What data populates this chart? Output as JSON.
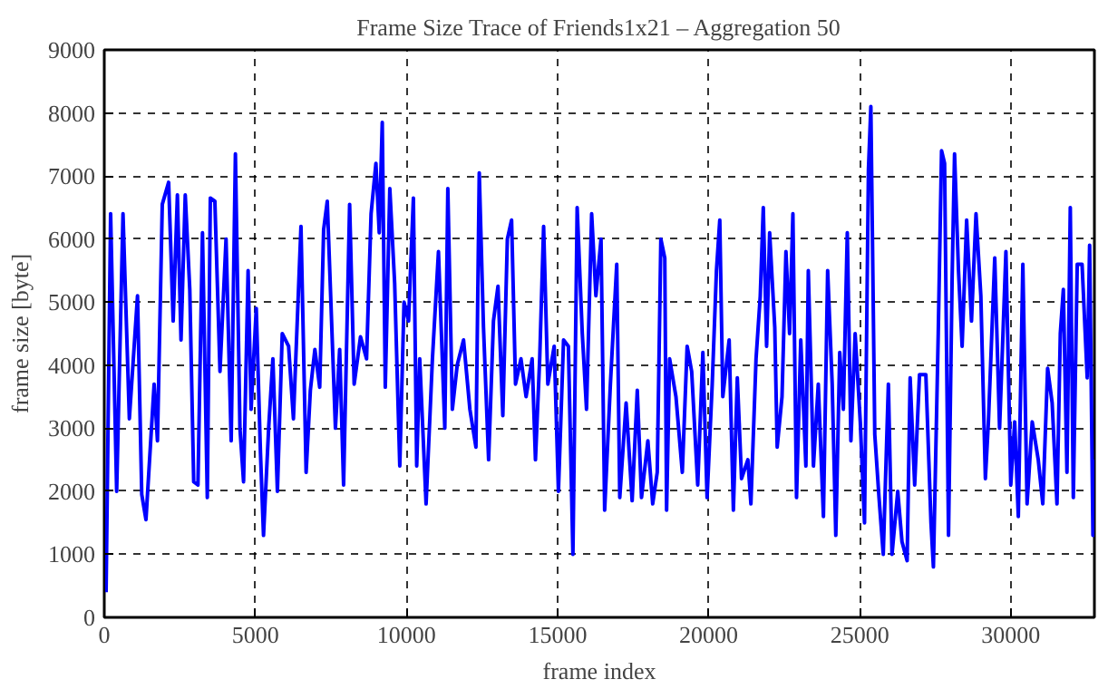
{
  "chart_data": {
    "type": "line",
    "title": "Frame Size Trace of Friends1x21 – Aggregation 50",
    "xlabel": "frame index",
    "ylabel": "frame size [byte]",
    "xlim": [
      0,
      32768
    ],
    "ylim": [
      0,
      9000
    ],
    "xticks": [
      0,
      5000,
      10000,
      15000,
      20000,
      25000,
      30000
    ],
    "yticks": [
      0,
      1000,
      2000,
      3000,
      4000,
      5000,
      6000,
      7000,
      8000,
      9000
    ],
    "grid": true,
    "series": [
      {
        "color": "#0000ff",
        "x": [
          60,
          210,
          410,
          620,
          830,
          1100,
          1240,
          1380,
          1650,
          1760,
          1920,
          2130,
          2280,
          2420,
          2540,
          2680,
          2830,
          2960,
          3100,
          3250,
          3410,
          3510,
          3660,
          3830,
          4030,
          4200,
          4340,
          4490,
          4610,
          4760,
          4860,
          5030,
          5170,
          5270,
          5440,
          5580,
          5730,
          5890,
          6100,
          6260,
          6510,
          6680,
          6820,
          6970,
          7130,
          7260,
          7380,
          7650,
          7790,
          7920,
          8120,
          8270,
          8480,
          8680,
          8830,
          8990,
          9100,
          9200,
          9300,
          9450,
          9610,
          9780,
          9920,
          10070,
          10230,
          10340,
          10440,
          10650,
          10860,
          11060,
          11270,
          11370,
          11520,
          11680,
          11890,
          12100,
          12300,
          12410,
          12550,
          12720,
          12880,
          13030,
          13190,
          13340,
          13480,
          13610,
          13790,
          13960,
          14160,
          14270,
          14410,
          14540,
          14680,
          14890,
          15030,
          15200,
          15360,
          15510,
          15650,
          15820,
          15960,
          16130,
          16270,
          16440,
          16560,
          16750,
          16960,
          17060,
          17270,
          17470,
          17640,
          17780,
          17990,
          18150,
          18300,
          18420,
          18550,
          18610,
          18710,
          18920,
          19130,
          19290,
          19440,
          19640,
          19810,
          19950,
          20120,
          20260,
          20370,
          20470,
          20680,
          20820,
          20950,
          21090,
          21300,
          21400,
          21570,
          21710,
          21810,
          21920,
          22020,
          22190,
          22270,
          22430,
          22560,
          22680,
          22790,
          22910,
          23050,
          23220,
          23300,
          23470,
          23630,
          23800,
          23940,
          24090,
          24210,
          24340,
          24460,
          24590,
          24710,
          24850,
          25020,
          25160,
          25290,
          25370,
          25500,
          25640,
          25780,
          25950,
          26070,
          26260,
          26400,
          26570,
          26670,
          26820,
          26980,
          27190,
          27360,
          27440,
          27600,
          27710,
          27810,
          27940,
          28060,
          28140,
          28270,
          28390,
          28540,
          28700,
          28850,
          29010,
          29160,
          29260,
          29470,
          29630,
          29840,
          30000,
          30130,
          30250,
          30400,
          30540,
          30710,
          30910,
          31060,
          31220,
          31370,
          31530,
          31640,
          31740,
          31860,
          31970,
          32070,
          32200,
          32360,
          32530,
          32610,
          32720,
          32760
        ],
        "values": [
          400,
          6400,
          2000,
          6400,
          3150,
          5100,
          1950,
          1550,
          3700,
          2800,
          6550,
          6900,
          4700,
          6700,
          4400,
          6700,
          5200,
          2150,
          2100,
          6100,
          1900,
          6650,
          6600,
          3900,
          6000,
          2800,
          7350,
          3000,
          2150,
          5500,
          3300,
          4900,
          2600,
          1300,
          3000,
          4100,
          2000,
          4500,
          4300,
          3150,
          6200,
          2300,
          3600,
          4250,
          3650,
          6150,
          6600,
          3000,
          4250,
          2100,
          6550,
          3700,
          4450,
          4100,
          6400,
          7200,
          6100,
          7850,
          3650,
          6800,
          5300,
          2400,
          5000,
          4700,
          6650,
          2400,
          4100,
          1800,
          4100,
          5800,
          3000,
          6800,
          3300,
          4000,
          4400,
          3300,
          2700,
          7050,
          4600,
          2500,
          4700,
          5250,
          3200,
          6000,
          6300,
          3700,
          4100,
          3500,
          4100,
          2500,
          4100,
          6200,
          3700,
          4300,
          2000,
          4400,
          4300,
          1000,
          6500,
          4500,
          3300,
          6400,
          5100,
          6000,
          1700,
          3700,
          5600,
          1900,
          3400,
          1850,
          3600,
          1900,
          2800,
          1800,
          2300,
          6000,
          5700,
          1700,
          4100,
          3500,
          2300,
          4300,
          3900,
          2100,
          4200,
          1900,
          3700,
          5500,
          6300,
          3500,
          4400,
          1700,
          3800,
          2200,
          2500,
          1800,
          4100,
          5100,
          6500,
          4300,
          6100,
          4600,
          2700,
          3500,
          5800,
          4500,
          6400,
          1900,
          4400,
          2400,
          5500,
          2400,
          3700,
          1600,
          5500,
          3700,
          1300,
          4200,
          3300,
          6100,
          2800,
          4500,
          3100,
          1500,
          7100,
          8100,
          2900,
          1900,
          1000,
          3700,
          1000,
          2000,
          1200,
          900,
          3800,
          2100,
          3850,
          3850,
          1500,
          800,
          4500,
          7400,
          7200,
          1300,
          5400,
          7350,
          5500,
          4300,
          6300,
          4700,
          6400,
          5100,
          2200,
          3100,
          5700,
          3000,
          5800,
          2100,
          3100,
          1600,
          5600,
          1800,
          3100,
          2500,
          1800,
          3950,
          3400,
          1800,
          4500,
          5200,
          2300,
          6500,
          1900,
          5600,
          5600,
          3800,
          5900,
          1300,
          2500
        ]
      }
    ]
  }
}
